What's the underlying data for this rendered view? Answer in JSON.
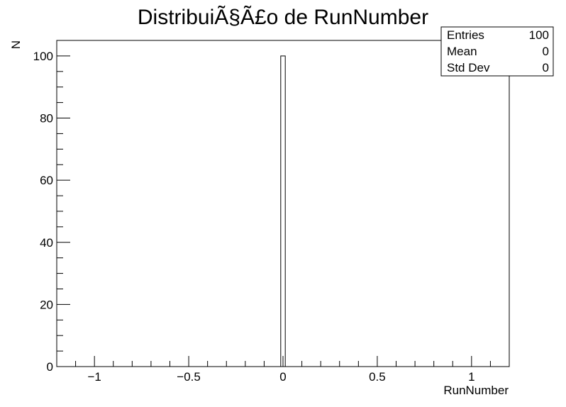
{
  "chart_data": {
    "type": "bar",
    "title": "DistribuiÃ§Ã£o de RunNumber",
    "xlabel": "RunNumber",
    "ylabel": "N",
    "xlim": [
      -1.2,
      1.2
    ],
    "ylim": [
      0,
      105
    ],
    "bin_width": 0.024,
    "bins": [
      {
        "x_low": -0.012,
        "x_high": 0.012,
        "count": 100
      }
    ],
    "x_ticks": [
      {
        "value": -1,
        "label": "−1"
      },
      {
        "value": -0.5,
        "label": "−0.5"
      },
      {
        "value": 0,
        "label": "0"
      },
      {
        "value": 0.5,
        "label": "0.5"
      },
      {
        "value": 1,
        "label": "1"
      }
    ],
    "y_ticks": [
      {
        "value": 0,
        "label": "0"
      },
      {
        "value": 20,
        "label": "20"
      },
      {
        "value": 40,
        "label": "40"
      },
      {
        "value": 60,
        "label": "60"
      },
      {
        "value": 80,
        "label": "80"
      },
      {
        "value": 100,
        "label": "100"
      }
    ],
    "stats": {
      "rows": [
        {
          "label": "Entries",
          "value": "100"
        },
        {
          "label": "Mean",
          "value": "0"
        },
        {
          "label": "Std Dev",
          "value": "0"
        }
      ]
    },
    "grid": false,
    "colors": {
      "line": "#000000",
      "fill": "#ffffff"
    }
  }
}
